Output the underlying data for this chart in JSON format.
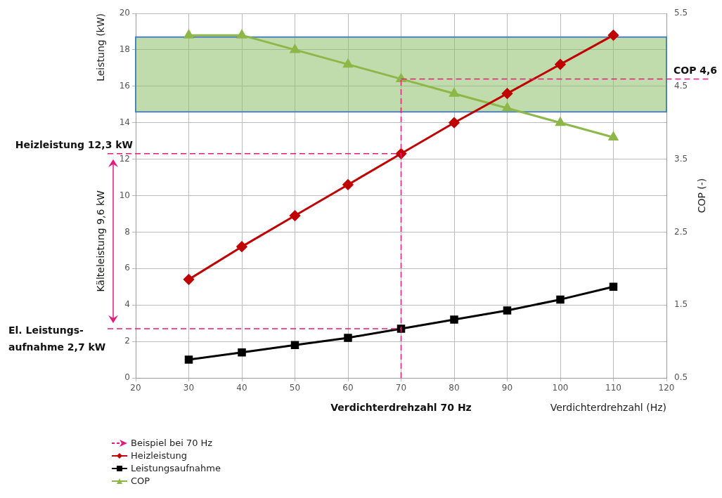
{
  "chart_data": {
    "type": "line",
    "xlabel": "Verdichterdrehzahl (Hz)",
    "ylabel": "Leistung (kW)",
    "y2label": "COP (-)",
    "x": [
      30,
      40,
      50,
      60,
      70,
      80,
      90,
      100,
      110
    ],
    "xlim": [
      20,
      120
    ],
    "xticks": [
      20,
      30,
      40,
      50,
      60,
      70,
      80,
      90,
      100,
      110,
      120
    ],
    "ylim": [
      0,
      20
    ],
    "yticks": [
      0,
      2,
      4,
      6,
      8,
      10,
      12,
      14,
      16,
      18,
      20
    ],
    "y2lim": [
      0.5,
      5.5
    ],
    "y2ticks": [
      0.5,
      1.5,
      2.5,
      3.5,
      4.5,
      5.5
    ],
    "series": [
      {
        "name": "Heizleistung",
        "color": "#c00000",
        "marker": "diamond",
        "values": [
          5.4,
          7.2,
          8.9,
          10.6,
          12.3,
          14.0,
          15.6,
          17.2,
          18.8
        ]
      },
      {
        "name": "Leistungsaufnahme",
        "color": "#000000",
        "marker": "square",
        "values": [
          1.0,
          1.4,
          1.8,
          2.2,
          2.7,
          3.2,
          3.7,
          4.3,
          5.0
        ]
      },
      {
        "name": "COP",
        "color": "#8db848",
        "marker": "triangle",
        "axis": "y2",
        "values": [
          5.2,
          5.2,
          5.0,
          4.8,
          4.6,
          4.4,
          4.2,
          4.0,
          3.8
        ]
      }
    ],
    "ref_lines": [
      {
        "axis": "x",
        "value": 70,
        "label": "Verdichterdrehzahl 70 Hz",
        "color": "#e6197e",
        "line_style": "dashed"
      },
      {
        "axis": "y",
        "value": 12.3,
        "label": "Heizleistung 12,3 kW",
        "color": "#e6197e",
        "line_style": "dashed"
      },
      {
        "axis": "y",
        "value": 2.7,
        "label": "El. Leistungs-\naufnahme 2,7 kW",
        "color": "#e6197e",
        "line_style": "dashed"
      },
      {
        "axis": "y2",
        "value": 4.6,
        "label": "COP 4,6",
        "color": "#e6197e",
        "line_style": "dashed"
      }
    ],
    "bands": [
      {
        "axis": "y",
        "from": 14.6,
        "to": 18.7,
        "color": "#8cc068"
      }
    ],
    "annotations": [
      "Kälteleistung 9,6 kW",
      "Beispiel bei 70 Hz"
    ],
    "grid": true,
    "legend": "bottom left"
  }
}
